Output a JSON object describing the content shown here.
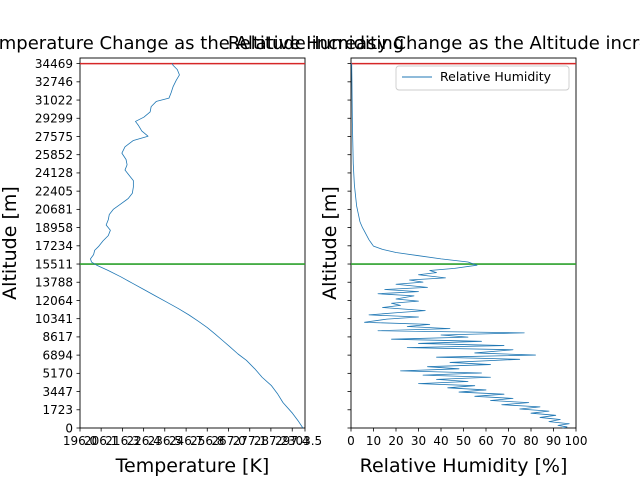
{
  "chart_data": [
    {
      "type": "line",
      "title": "Temperature Change as the Altitude increasing",
      "xlabel": "Temperature [K]",
      "ylabel": "Altitude [m]",
      "xlim": [
        196.0,
        303.5
      ],
      "ylim": [
        0,
        35000
      ],
      "xticks": [
        196.0,
        206.1,
        216.3,
        226.4,
        236.5,
        246.7,
        256.8,
        267.0,
        277.1,
        287.2,
        297.4,
        303.5
      ],
      "xtick_labels": [
        "196.0",
        "206.1",
        "216.3",
        "226.4",
        "236.5",
        "246.7",
        "256.8",
        "267.0",
        "277.1",
        "287.2",
        "297.4",
        "303.5"
      ],
      "yticks": [
        0,
        1723,
        3447,
        5170,
        6894,
        8617,
        10341,
        12064,
        13788,
        15511,
        17234,
        18958,
        20681,
        22405,
        24128,
        25852,
        27575,
        29299,
        31022,
        32746,
        34469
      ],
      "hlines": [
        {
          "y": 34469,
          "color": "#d62728"
        },
        {
          "y": 15511,
          "color": "#2ca02c"
        }
      ],
      "series": [
        {
          "color": "#1f77b4",
          "points": [
            [
              302.5,
              0
            ],
            [
              300.5,
              600
            ],
            [
              297.5,
              1400
            ],
            [
              293,
              2400
            ],
            [
              290.5,
              3200
            ],
            [
              287.5,
              4000
            ],
            [
              283,
              4800
            ],
            [
              279.5,
              5600
            ],
            [
              275.5,
              6400
            ],
            [
              271.5,
              7000
            ],
            [
              267.5,
              7700
            ],
            [
              264,
              8300
            ],
            [
              260.5,
              8900
            ],
            [
              256.8,
              9500
            ],
            [
              252.5,
              10100
            ],
            [
              248,
              10700
            ],
            [
              243,
              11300
            ],
            [
              237.5,
              11900
            ],
            [
              232,
              12500
            ],
            [
              226.5,
              13100
            ],
            [
              221,
              13700
            ],
            [
              215.5,
              14300
            ],
            [
              209.5,
              14900
            ],
            [
              204,
              15400
            ],
            [
              201.5,
              15700
            ],
            [
              201,
              16000
            ],
            [
              202.5,
              16400
            ],
            [
              203,
              16800
            ],
            [
              205,
              17200
            ],
            [
              207,
              17700
            ],
            [
              209.5,
              18200
            ],
            [
              210.5,
              18700
            ],
            [
              208.5,
              19200
            ],
            [
              209.5,
              19700
            ],
            [
              210,
              20200
            ],
            [
              212,
              20700
            ],
            [
              215.5,
              21200
            ],
            [
              219,
              21700
            ],
            [
              221,
              22200
            ],
            [
              221.5,
              22800
            ],
            [
              221.5,
              23400
            ],
            [
              219.5,
              23900
            ],
            [
              217.5,
              24400
            ],
            [
              218.5,
              24900
            ],
            [
              218,
              25400
            ],
            [
              216,
              26000
            ],
            [
              217.5,
              26600
            ],
            [
              221.5,
              27200
            ],
            [
              228.5,
              27600
            ],
            [
              225.5,
              28100
            ],
            [
              224,
              28600
            ],
            [
              222.5,
              29000
            ],
            [
              226.5,
              29400
            ],
            [
              229.5,
              29900
            ],
            [
              230,
              30400
            ],
            [
              232.5,
              30900
            ],
            [
              238.5,
              31200
            ],
            [
              239.5,
              31700
            ],
            [
              240.5,
              32300
            ],
            [
              242,
              32900
            ],
            [
              243.5,
              33400
            ],
            [
              242.5,
              33900
            ],
            [
              240.5,
              34300
            ],
            [
              240,
              34500
            ]
          ]
        }
      ]
    },
    {
      "type": "line",
      "title": "Relative Humidity Change as the Altitude increasing",
      "xlabel": "Relative Humidity [%]",
      "ylabel": "Altitude [m]",
      "xlim": [
        0,
        100
      ],
      "ylim": [
        0,
        35000
      ],
      "xticks": [
        0,
        10,
        20,
        30,
        40,
        50,
        60,
        70,
        80,
        90,
        100
      ],
      "xtick_labels": [
        "0",
        "10",
        "20",
        "30",
        "40",
        "50",
        "60",
        "70",
        "80",
        "90",
        "100"
      ],
      "yticks": [
        0,
        1723,
        3447,
        5170,
        6894,
        8617,
        10341,
        12064,
        13788,
        15511,
        17234,
        18958,
        20681,
        22405,
        24128,
        25852,
        27575,
        29299,
        31022,
        32746,
        34469
      ],
      "legend": {
        "position": "top-right",
        "entries": [
          "Relative Humidity"
        ]
      },
      "hlines": [
        {
          "y": 34469,
          "color": "#d62728"
        },
        {
          "y": 15511,
          "color": "#2ca02c"
        }
      ],
      "series": [
        {
          "name": "Relative Humidity",
          "color": "#1f77b4",
          "points": [
            [
              94,
              0
            ],
            [
              96,
              100
            ],
            [
              92,
              250
            ],
            [
              97,
              400
            ],
            [
              88,
              600
            ],
            [
              93,
              800
            ],
            [
              84,
              1000
            ],
            [
              91,
              1200
            ],
            [
              80,
              1400
            ],
            [
              88,
              1600
            ],
            [
              75,
              1800
            ],
            [
              84,
              2000
            ],
            [
              67,
              2200
            ],
            [
              79,
              2400
            ],
            [
              62,
              2600
            ],
            [
              72,
              2800
            ],
            [
              55,
              3000
            ],
            [
              68,
              3200
            ],
            [
              48,
              3400
            ],
            [
              60,
              3600
            ],
            [
              43,
              3800
            ],
            [
              55,
              4000
            ],
            [
              30,
              4200
            ],
            [
              52,
              4400
            ],
            [
              38,
              4600
            ],
            [
              62,
              4800
            ],
            [
              32,
              5000
            ],
            [
              58,
              5200
            ],
            [
              22,
              5400
            ],
            [
              48,
              5600
            ],
            [
              34,
              5800
            ],
            [
              62,
              6000
            ],
            [
              44,
              6200
            ],
            [
              75,
              6500
            ],
            [
              38,
              6700
            ],
            [
              82,
              6900
            ],
            [
              55,
              7100
            ],
            [
              72,
              7400
            ],
            [
              25,
              7600
            ],
            [
              68,
              7800
            ],
            [
              30,
              8000
            ],
            [
              58,
              8200
            ],
            [
              18,
              8400
            ],
            [
              52,
              8600
            ],
            [
              40,
              8800
            ],
            [
              77,
              9000
            ],
            [
              12,
              9200
            ],
            [
              44,
              9400
            ],
            [
              25,
              9600
            ],
            [
              35,
              9800
            ],
            [
              6,
              10000
            ],
            [
              16,
              10300
            ],
            [
              30,
              10500
            ],
            [
              8,
              10700
            ],
            [
              20,
              10900
            ],
            [
              33,
              11100
            ],
            [
              14,
              11400
            ],
            [
              22,
              11600
            ],
            [
              18,
              11800
            ],
            [
              30,
              12000
            ],
            [
              20,
              12200
            ],
            [
              28,
              12500
            ],
            [
              12,
              12700
            ],
            [
              30,
              12900
            ],
            [
              15,
              13100
            ],
            [
              34,
              13300
            ],
            [
              20,
              13600
            ],
            [
              32,
              13800
            ],
            [
              26,
              14000
            ],
            [
              42,
              14200
            ],
            [
              30,
              14500
            ],
            [
              38,
              14700
            ],
            [
              35,
              14900
            ],
            [
              46,
              15100
            ],
            [
              56,
              15400
            ],
            [
              52,
              15700
            ],
            [
              40,
              16000
            ],
            [
              30,
              16300
            ],
            [
              20,
              16600
            ],
            [
              14,
              16900
            ],
            [
              10,
              17200
            ],
            [
              9,
              17500
            ],
            [
              8,
              17800
            ],
            [
              7,
              18200
            ],
            [
              6,
              18600
            ],
            [
              5,
              19000
            ],
            [
              4,
              19500
            ],
            [
              3.5,
              20000
            ],
            [
              3,
              20500
            ],
            [
              2.5,
              21000
            ],
            [
              2,
              22000
            ],
            [
              1.5,
              23000
            ],
            [
              1,
              25000
            ],
            [
              0.8,
              27000
            ],
            [
              0.6,
              29000
            ],
            [
              0.5,
              31000
            ],
            [
              0.4,
              33000
            ],
            [
              0.3,
              34500
            ]
          ]
        }
      ]
    }
  ]
}
